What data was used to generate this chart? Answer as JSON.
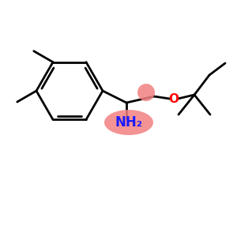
{
  "background_color": "#ffffff",
  "bond_color": "#000000",
  "nh2_text_color": "#1a1aff",
  "oxygen_color": "#ff0000",
  "highlight_color": "#f28080",
  "highlight_alpha": 0.85,
  "line_width": 2.0
}
